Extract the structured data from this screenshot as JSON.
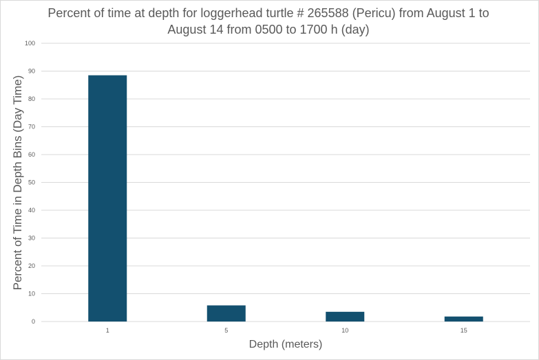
{
  "chart_data": {
    "type": "bar",
    "title_lines": [
      "Percent of time at depth for loggerhead turtle # 265588 (Pericu) from August 1 to",
      "August 14 from 0500 to 1700 h (day)"
    ],
    "xlabel": "Depth (meters)",
    "ylabel": "Percent of Time in Depth Bins (Day Time)",
    "categories": [
      "1",
      "5",
      "10",
      "15"
    ],
    "values": [
      88.5,
      5.8,
      3.5,
      1.8
    ],
    "ylim": [
      0,
      100
    ],
    "yticks": [
      0,
      10,
      20,
      30,
      40,
      50,
      60,
      70,
      80,
      90,
      100
    ],
    "grid": true,
    "legend": "none",
    "bar_color": "#13506f",
    "grid_color": "#d9d9d9"
  }
}
